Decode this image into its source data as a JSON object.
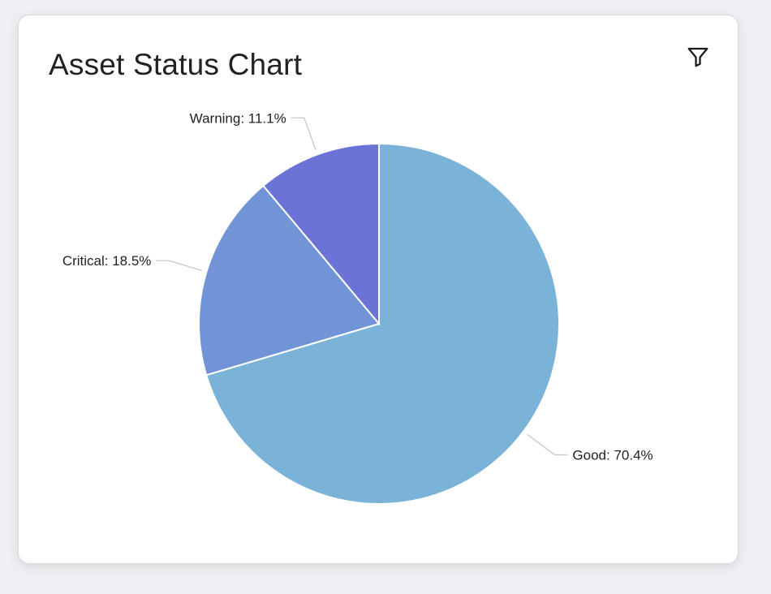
{
  "card": {
    "title": "Asset Status Chart",
    "filter_icon": "filter-icon"
  },
  "chart_data": {
    "type": "pie",
    "title": "Asset Status Chart",
    "slices": [
      {
        "name": "Good",
        "value": 70.4,
        "label": "Good: 70.4%",
        "color": "#7bb3d8"
      },
      {
        "name": "Critical",
        "value": 18.5,
        "label": "Critical: 18.5%",
        "color": "#7194d6"
      },
      {
        "name": "Warning",
        "value": 11.1,
        "label": "Warning: 11.1%",
        "color": "#6b74d6"
      }
    ],
    "start": "12 o'clock",
    "direction": "clockwise",
    "legend": "none"
  }
}
